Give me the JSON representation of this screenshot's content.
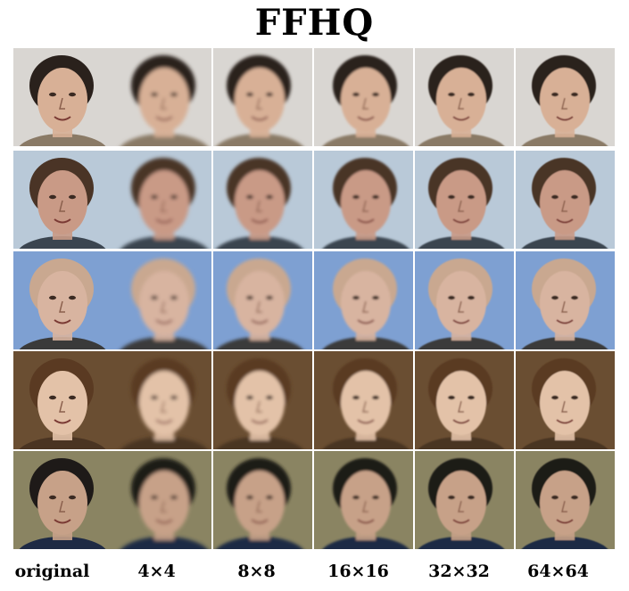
{
  "figure": {
    "title": "FFHQ",
    "column_labels": [
      "original",
      "4×4",
      "8×8",
      "16×16",
      "32×32",
      "64×64"
    ],
    "rows": [
      {
        "background": "#d9d6d2",
        "skin": "#d8b096",
        "hair": "#2a211c",
        "shirt": "#8a7a66"
      },
      {
        "background": "#b9c9d8",
        "skin": "#c99a86",
        "hair": "#4a3426",
        "shirt": "#3b4550"
      },
      {
        "background": "#7ea0d2",
        "skin": "#d8b4a0",
        "hair": "#c9a890",
        "shirt": "#3a3a3a"
      },
      {
        "background": "#6a4e32",
        "skin": "#e3c2a8",
        "hair": "#5a3a22",
        "shirt": "#4a3422"
      },
      {
        "background": "#8a8462",
        "skin": "#c7a188",
        "hair": "#1e1a18",
        "shirt": "#1e2a44"
      }
    ]
  }
}
